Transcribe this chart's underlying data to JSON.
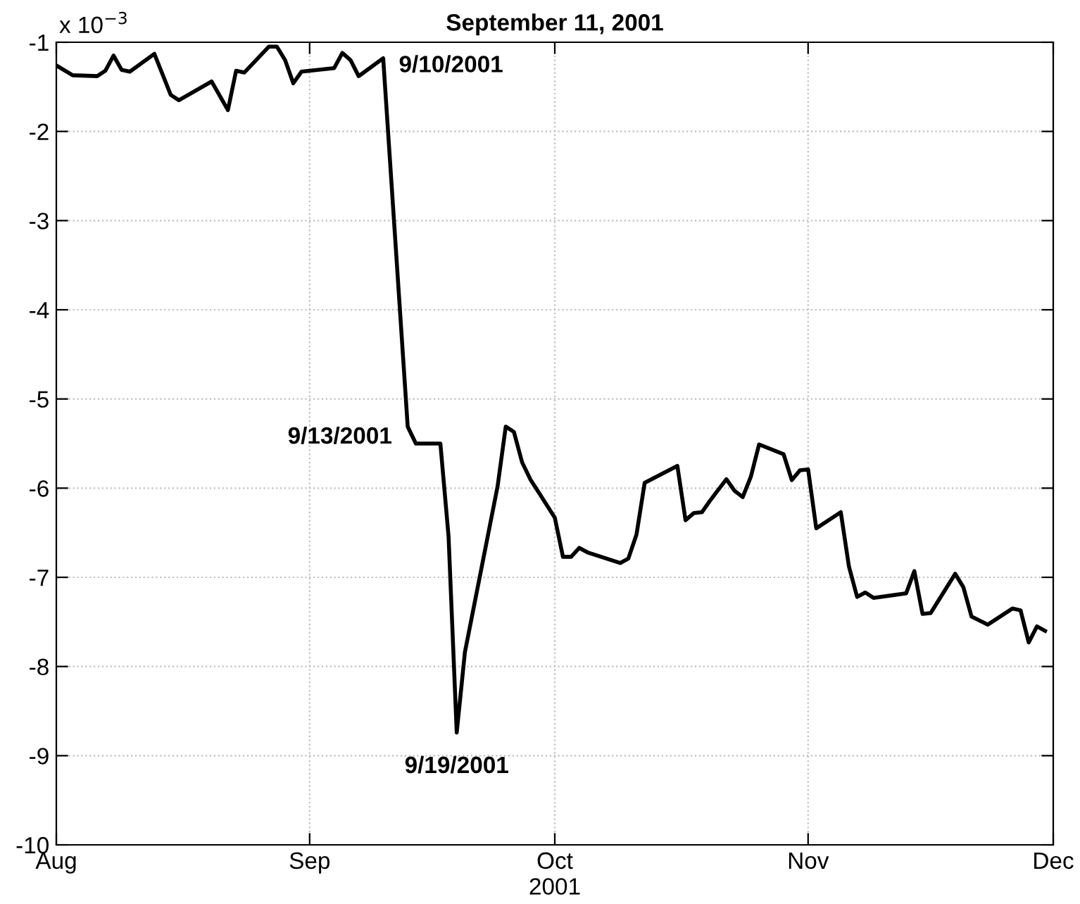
{
  "chart_data": {
    "type": "line",
    "title": "September 11, 2001",
    "xlabel": "2001",
    "x": [
      "2001-08-01",
      "2001-08-03",
      "2001-08-06",
      "2001-08-07",
      "2001-08-08",
      "2001-08-09",
      "2001-08-10",
      "2001-08-13",
      "2001-08-15",
      "2001-08-16",
      "2001-08-20",
      "2001-08-22",
      "2001-08-23",
      "2001-08-24",
      "2001-08-27",
      "2001-08-28",
      "2001-08-29",
      "2001-08-30",
      "2001-08-31",
      "2001-09-04",
      "2001-09-05",
      "2001-09-06",
      "2001-09-07",
      "2001-09-10",
      "2001-09-13",
      "2001-09-14",
      "2001-09-17",
      "2001-09-18",
      "2001-09-19",
      "2001-09-20",
      "2001-09-24",
      "2001-09-25",
      "2001-09-26",
      "2001-09-27",
      "2001-09-28",
      "2001-10-01",
      "2001-10-02",
      "2001-10-03",
      "2001-10-04",
      "2001-10-05",
      "2001-10-09",
      "2001-10-10",
      "2001-10-11",
      "2001-10-12",
      "2001-10-16",
      "2001-10-17",
      "2001-10-18",
      "2001-10-19",
      "2001-10-20",
      "2001-10-22",
      "2001-10-23",
      "2001-10-24",
      "2001-10-25",
      "2001-10-26",
      "2001-10-29",
      "2001-10-30",
      "2001-10-31",
      "2001-11-01",
      "2001-11-02",
      "2001-11-05",
      "2001-11-06",
      "2001-11-07",
      "2001-11-08",
      "2001-11-09",
      "2001-11-13",
      "2001-11-14",
      "2001-11-15",
      "2001-11-16",
      "2001-11-19",
      "2001-11-20",
      "2001-11-21",
      "2001-11-23",
      "2001-11-26",
      "2001-11-27",
      "2001-11-28",
      "2001-11-29",
      "2001-11-30"
    ],
    "series": [
      {
        "color": "#000000",
        "values": [
          -1.26,
          -1.37,
          -1.38,
          -1.32,
          -1.15,
          -1.31,
          -1.33,
          -1.13,
          -1.59,
          -1.65,
          -1.44,
          -1.76,
          -1.32,
          -1.34,
          -1.05,
          -1.05,
          -1.2,
          -1.46,
          -1.33,
          -1.29,
          -1.12,
          -1.2,
          -1.38,
          -1.18,
          -5.31,
          -5.5,
          -5.5,
          -6.54,
          -8.74,
          -7.84,
          -5.98,
          -5.31,
          -5.37,
          -5.71,
          -5.9,
          -6.33,
          -6.77,
          -6.77,
          -6.67,
          -6.72,
          -6.84,
          -6.79,
          -6.52,
          -5.94,
          -5.75,
          -6.36,
          -6.28,
          -6.27,
          -6.14,
          -5.9,
          -6.03,
          -6.1,
          -5.87,
          -5.51,
          -5.62,
          -5.91,
          -5.8,
          -5.79,
          -6.45,
          -6.27,
          -6.88,
          -7.22,
          -7.17,
          -7.23,
          -7.18,
          -6.93,
          -7.41,
          -7.4,
          -6.96,
          -7.11,
          -7.44,
          -7.53,
          -7.35,
          -7.37,
          -7.73,
          -7.55,
          -7.6
        ]
      }
    ],
    "xlim": [
      "2001-08-01",
      "2001-12-01"
    ],
    "xticks": [
      {
        "value": "2001-08-01",
        "label": "Aug"
      },
      {
        "value": "2001-09-01",
        "label": "Sep"
      },
      {
        "value": "2001-10-01",
        "label": "Oct"
      },
      {
        "value": "2001-11-01",
        "label": "Nov"
      },
      {
        "value": "2001-12-01",
        "label": "Dec"
      }
    ],
    "ylim": [
      -10,
      -1
    ],
    "yticks": [
      -10,
      -9,
      -8,
      -7,
      -6,
      -5,
      -4,
      -3,
      -2,
      -1
    ],
    "grid": true,
    "legend": false,
    "marker": "none",
    "line_style": "solid",
    "annotations": [
      "x 10$^{−3}$",
      {
        "text": "9/10/2001",
        "x": "2001-09-10",
        "y": -1.18
      },
      {
        "text": "9/13/2001",
        "x": "2001-09-13",
        "y": -5.31
      },
      {
        "text": "9/19/2001",
        "x": "2001-09-19",
        "y": -8.74
      }
    ]
  }
}
